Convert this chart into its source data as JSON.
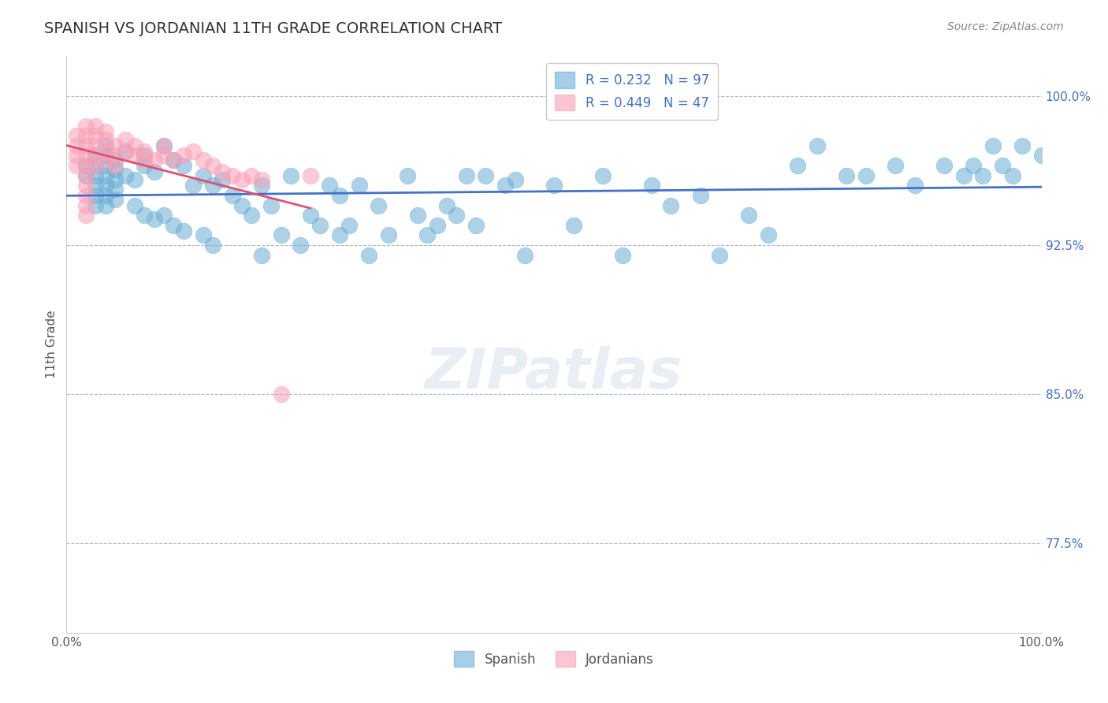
{
  "title": "SPANISH VS JORDANIAN 11TH GRADE CORRELATION CHART",
  "source_text": "Source: ZipAtlas.com",
  "xlabel": "",
  "ylabel": "11th Grade",
  "xlim": [
    0.0,
    1.0
  ],
  "ylim": [
    0.73,
    1.02
  ],
  "yticks": [
    0.775,
    0.85,
    0.925,
    1.0
  ],
  "ytick_labels": [
    "77.5%",
    "85.0%",
    "92.5%",
    "100.0%"
  ],
  "xticks": [
    0.0,
    0.1,
    0.2,
    0.3,
    0.4,
    0.5,
    0.6,
    0.7,
    0.8,
    0.9,
    1.0
  ],
  "xtick_labels": [
    "0.0%",
    "",
    "",
    "",
    "",
    "",
    "",
    "",
    "",
    "",
    "100.0%"
  ],
  "spanish_color": "#6baed6",
  "jordanian_color": "#fa9fb5",
  "spanish_R": 0.232,
  "spanish_N": 97,
  "jordanian_R": 0.449,
  "jordanian_N": 47,
  "trend_blue": "#4472c4",
  "trend_pink": "#e05070",
  "background_color": "#ffffff",
  "watermark": "ZIPatlas",
  "watermark_color_Z": "#6baed6",
  "watermark_color_rest": "#c0c0c0",
  "legend_R_color": "#4472c4",
  "legend_N_color": "#e05070",
  "spanish_points_x": [
    0.02,
    0.02,
    0.03,
    0.03,
    0.03,
    0.03,
    0.03,
    0.03,
    0.04,
    0.04,
    0.04,
    0.04,
    0.04,
    0.04,
    0.04,
    0.05,
    0.05,
    0.05,
    0.05,
    0.05,
    0.06,
    0.06,
    0.07,
    0.07,
    0.08,
    0.08,
    0.08,
    0.09,
    0.09,
    0.1,
    0.1,
    0.11,
    0.11,
    0.12,
    0.12,
    0.13,
    0.14,
    0.14,
    0.15,
    0.15,
    0.16,
    0.17,
    0.18,
    0.19,
    0.2,
    0.2,
    0.21,
    0.22,
    0.23,
    0.24,
    0.25,
    0.26,
    0.27,
    0.28,
    0.28,
    0.29,
    0.3,
    0.31,
    0.32,
    0.33,
    0.35,
    0.36,
    0.37,
    0.38,
    0.39,
    0.4,
    0.41,
    0.42,
    0.43,
    0.45,
    0.46,
    0.47,
    0.5,
    0.52,
    0.55,
    0.57,
    0.6,
    0.62,
    0.65,
    0.67,
    0.7,
    0.72,
    0.75,
    0.77,
    0.8,
    0.82,
    0.85,
    0.87,
    0.9,
    0.92,
    0.93,
    0.94,
    0.95,
    0.96,
    0.97,
    0.98,
    1.0
  ],
  "spanish_points_y": [
    0.965,
    0.96,
    0.97,
    0.965,
    0.96,
    0.955,
    0.95,
    0.945,
    0.975,
    0.97,
    0.965,
    0.96,
    0.955,
    0.95,
    0.945,
    0.968,
    0.963,
    0.958,
    0.953,
    0.948,
    0.972,
    0.96,
    0.958,
    0.945,
    0.97,
    0.965,
    0.94,
    0.962,
    0.938,
    0.975,
    0.94,
    0.968,
    0.935,
    0.965,
    0.932,
    0.955,
    0.96,
    0.93,
    0.955,
    0.925,
    0.958,
    0.95,
    0.945,
    0.94,
    0.955,
    0.92,
    0.945,
    0.93,
    0.96,
    0.925,
    0.94,
    0.935,
    0.955,
    0.93,
    0.95,
    0.935,
    0.955,
    0.92,
    0.945,
    0.93,
    0.96,
    0.94,
    0.93,
    0.935,
    0.945,
    0.94,
    0.96,
    0.935,
    0.96,
    0.955,
    0.958,
    0.92,
    0.955,
    0.935,
    0.96,
    0.92,
    0.955,
    0.945,
    0.95,
    0.92,
    0.94,
    0.93,
    0.965,
    0.975,
    0.96,
    0.96,
    0.965,
    0.955,
    0.965,
    0.96,
    0.965,
    0.96,
    0.975,
    0.965,
    0.96,
    0.975,
    0.97
  ],
  "jordanian_points_x": [
    0.01,
    0.01,
    0.01,
    0.01,
    0.02,
    0.02,
    0.02,
    0.02,
    0.02,
    0.02,
    0.02,
    0.02,
    0.02,
    0.02,
    0.03,
    0.03,
    0.03,
    0.03,
    0.03,
    0.04,
    0.04,
    0.04,
    0.04,
    0.05,
    0.05,
    0.05,
    0.06,
    0.06,
    0.07,
    0.07,
    0.08,
    0.08,
    0.09,
    0.1,
    0.1,
    0.11,
    0.12,
    0.13,
    0.14,
    0.15,
    0.16,
    0.17,
    0.18,
    0.19,
    0.2,
    0.22,
    0.25
  ],
  "jordanian_points_y": [
    0.98,
    0.975,
    0.97,
    0.965,
    0.985,
    0.98,
    0.975,
    0.97,
    0.965,
    0.96,
    0.955,
    0.95,
    0.945,
    0.94,
    0.985,
    0.98,
    0.975,
    0.97,
    0.965,
    0.982,
    0.978,
    0.972,
    0.968,
    0.975,
    0.97,
    0.965,
    0.978,
    0.972,
    0.975,
    0.97,
    0.972,
    0.968,
    0.968,
    0.975,
    0.97,
    0.968,
    0.97,
    0.972,
    0.968,
    0.965,
    0.962,
    0.96,
    0.958,
    0.96,
    0.958,
    0.85,
    0.96
  ]
}
